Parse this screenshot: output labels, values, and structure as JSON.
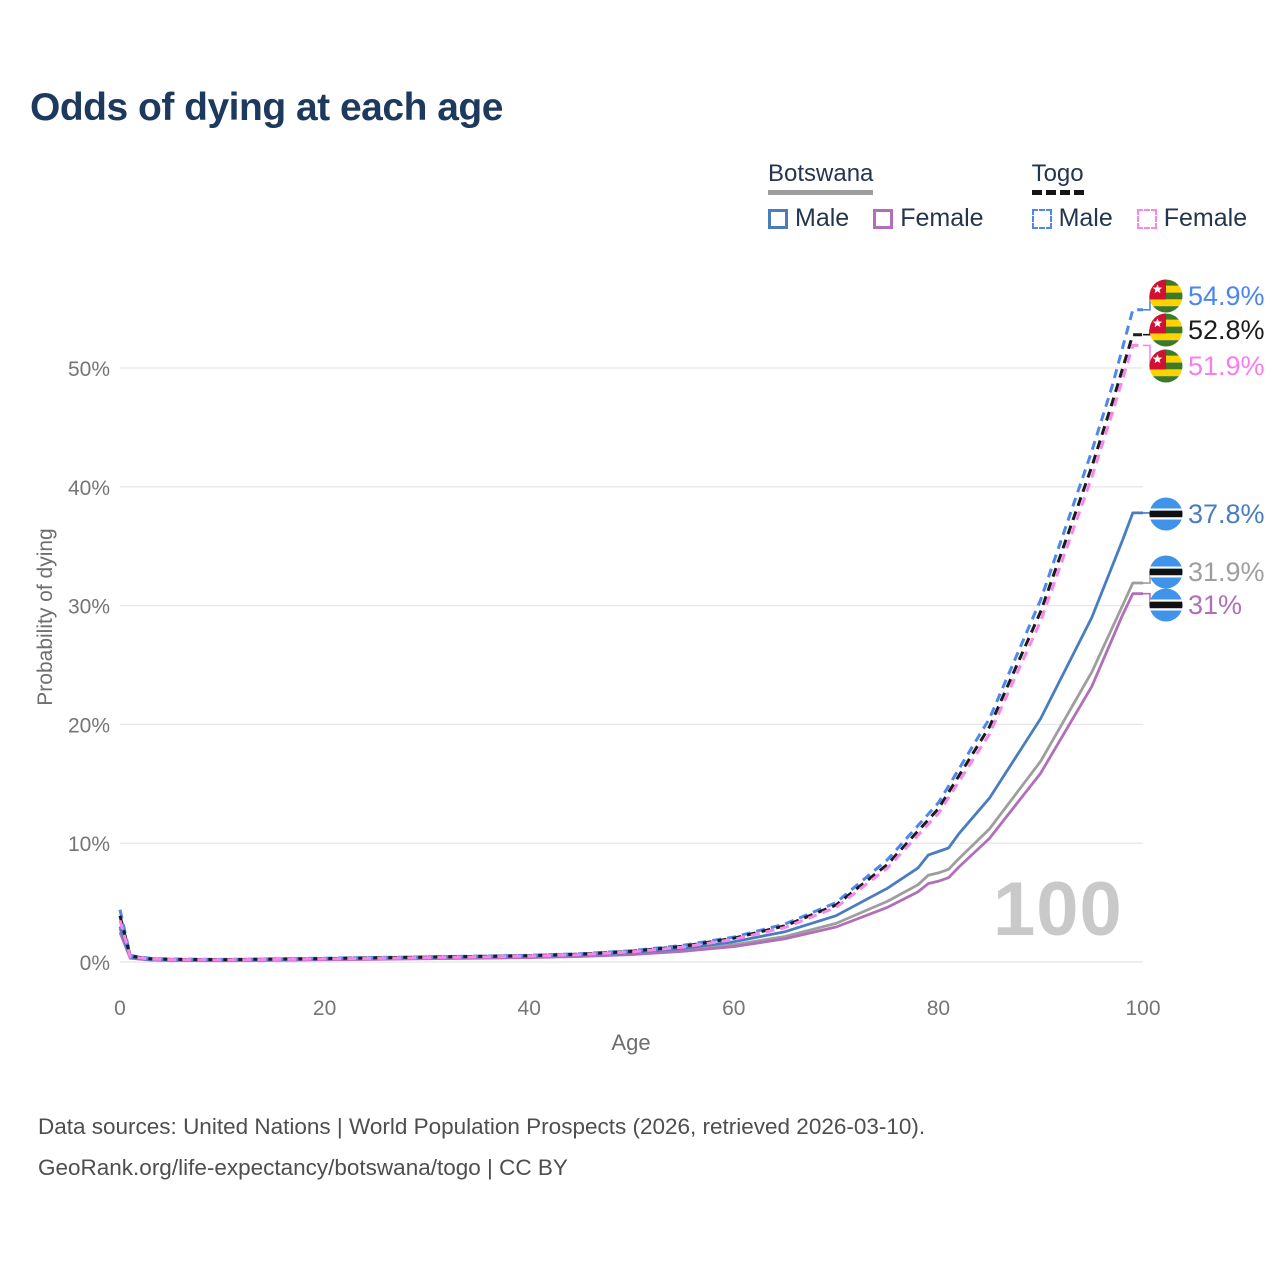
{
  "chart_data": {
    "type": "line",
    "title": "Odds of dying at each age",
    "xlabel": "Age",
    "ylabel": "Probability of dying",
    "watermark": "100",
    "xlim": [
      0,
      100
    ],
    "ylim": [
      0,
      57
    ],
    "grid": "horizontal",
    "x_ticks": [
      {
        "v": 0,
        "label": "0"
      },
      {
        "v": 20,
        "label": "20"
      },
      {
        "v": 40,
        "label": "40"
      },
      {
        "v": 60,
        "label": "60"
      },
      {
        "v": 80,
        "label": "80"
      },
      {
        "v": 100,
        "label": "100"
      }
    ],
    "y_ticks": [
      {
        "v": 0,
        "label": "0%"
      },
      {
        "v": 10,
        "label": "10%"
      },
      {
        "v": 20,
        "label": "20%"
      },
      {
        "v": 30,
        "label": "30%"
      },
      {
        "v": 40,
        "label": "40%"
      },
      {
        "v": 50,
        "label": "50%"
      }
    ],
    "legend": {
      "position": "top-right",
      "groups": [
        {
          "country": "Botswana",
          "line_style": "solid",
          "underline_color": "#9e9e9e",
          "items": [
            {
              "label": "Male",
              "color": "#4a7dc0"
            },
            {
              "label": "Female",
              "color": "#b06fb8"
            }
          ]
        },
        {
          "country": "Togo",
          "line_style": "dashed",
          "underline_color": "#151515",
          "items": [
            {
              "label": "Male",
              "color": "#4e87ee"
            },
            {
              "label": "Female",
              "color": "#fa85ee"
            }
          ]
        }
      ]
    },
    "series": [
      {
        "id": "togo-male",
        "name": "Togo Male",
        "country": "Togo",
        "sex": "male",
        "color": "#4e87ee",
        "dash": true,
        "end_label": "54.9%",
        "end_value": 54.9,
        "points": [
          [
            0,
            4.4
          ],
          [
            1,
            0.55
          ],
          [
            3,
            0.3
          ],
          [
            5,
            0.25
          ],
          [
            10,
            0.22
          ],
          [
            15,
            0.26
          ],
          [
            20,
            0.32
          ],
          [
            25,
            0.38
          ],
          [
            30,
            0.44
          ],
          [
            35,
            0.5
          ],
          [
            40,
            0.56
          ],
          [
            45,
            0.7
          ],
          [
            50,
            0.95
          ],
          [
            55,
            1.4
          ],
          [
            60,
            2.1
          ],
          [
            65,
            3.2
          ],
          [
            70,
            5.0
          ],
          [
            75,
            8.6
          ],
          [
            80,
            13.4
          ],
          [
            85,
            20.5
          ],
          [
            90,
            30.5
          ],
          [
            95,
            43.0
          ],
          [
            97,
            48.5
          ],
          [
            99,
            54.9
          ],
          [
            100,
            54.9
          ]
        ]
      },
      {
        "id": "togo-all",
        "name": "Togo",
        "country": "Togo",
        "sex": "all",
        "color": "#1c1c1c",
        "dash": true,
        "end_label": "52.8%",
        "end_value": 52.8,
        "points": [
          [
            0,
            3.9
          ],
          [
            1,
            0.5
          ],
          [
            3,
            0.27
          ],
          [
            5,
            0.22
          ],
          [
            10,
            0.2
          ],
          [
            15,
            0.24
          ],
          [
            20,
            0.29
          ],
          [
            25,
            0.35
          ],
          [
            30,
            0.41
          ],
          [
            35,
            0.47
          ],
          [
            40,
            0.53
          ],
          [
            45,
            0.66
          ],
          [
            50,
            0.9
          ],
          [
            55,
            1.32
          ],
          [
            60,
            2.0
          ],
          [
            65,
            3.05
          ],
          [
            70,
            4.8
          ],
          [
            75,
            8.2
          ],
          [
            80,
            12.9
          ],
          [
            85,
            19.8
          ],
          [
            90,
            29.5
          ],
          [
            95,
            41.7
          ],
          [
            97,
            47.1
          ],
          [
            99,
            52.8
          ],
          [
            100,
            52.8
          ]
        ]
      },
      {
        "id": "togo-female",
        "name": "Togo Female",
        "country": "Togo",
        "sex": "female",
        "color": "#fa85ee",
        "dash": true,
        "end_label": "51.9%",
        "end_value": 51.9,
        "points": [
          [
            0,
            3.5
          ],
          [
            1,
            0.45
          ],
          [
            3,
            0.24
          ],
          [
            5,
            0.2
          ],
          [
            10,
            0.18
          ],
          [
            15,
            0.21
          ],
          [
            20,
            0.26
          ],
          [
            25,
            0.31
          ],
          [
            30,
            0.37
          ],
          [
            35,
            0.43
          ],
          [
            40,
            0.5
          ],
          [
            45,
            0.62
          ],
          [
            50,
            0.85
          ],
          [
            55,
            1.25
          ],
          [
            60,
            1.9
          ],
          [
            65,
            2.9
          ],
          [
            70,
            4.6
          ],
          [
            75,
            7.9
          ],
          [
            80,
            12.5
          ],
          [
            85,
            19.2
          ],
          [
            90,
            28.7
          ],
          [
            95,
            40.8
          ],
          [
            97,
            46.2
          ],
          [
            99,
            51.9
          ],
          [
            100,
            51.9
          ]
        ]
      },
      {
        "id": "botswana-male",
        "name": "Botswana Male",
        "country": "Botswana",
        "sex": "male",
        "color": "#4a7dc0",
        "dash": false,
        "end_label": "37.8%",
        "end_value": 37.8,
        "points": [
          [
            0,
            3.0
          ],
          [
            1,
            0.4
          ],
          [
            3,
            0.2
          ],
          [
            5,
            0.17
          ],
          [
            10,
            0.15
          ],
          [
            15,
            0.2
          ],
          [
            20,
            0.27
          ],
          [
            25,
            0.33
          ],
          [
            30,
            0.39
          ],
          [
            35,
            0.45
          ],
          [
            40,
            0.5
          ],
          [
            45,
            0.6
          ],
          [
            50,
            0.8
          ],
          [
            55,
            1.15
          ],
          [
            60,
            1.7
          ],
          [
            65,
            2.55
          ],
          [
            70,
            3.9
          ],
          [
            75,
            6.2
          ],
          [
            78,
            7.9
          ],
          [
            79,
            9.0
          ],
          [
            80,
            9.3
          ],
          [
            81,
            9.6
          ],
          [
            82,
            10.8
          ],
          [
            85,
            13.8
          ],
          [
            90,
            20.5
          ],
          [
            95,
            29.0
          ],
          [
            98,
            35.5
          ],
          [
            99,
            37.8
          ],
          [
            100,
            37.8
          ]
        ]
      },
      {
        "id": "botswana-all",
        "name": "Botswana",
        "country": "Botswana",
        "sex": "all",
        "color": "#9e9e9e",
        "dash": false,
        "end_label": "31.9%",
        "end_value": 31.9,
        "points": [
          [
            0,
            2.8
          ],
          [
            1,
            0.36
          ],
          [
            3,
            0.18
          ],
          [
            5,
            0.15
          ],
          [
            10,
            0.12
          ],
          [
            15,
            0.16
          ],
          [
            20,
            0.22
          ],
          [
            25,
            0.27
          ],
          [
            30,
            0.32
          ],
          [
            35,
            0.37
          ],
          [
            40,
            0.42
          ],
          [
            45,
            0.52
          ],
          [
            50,
            0.7
          ],
          [
            55,
            1.0
          ],
          [
            60,
            1.45
          ],
          [
            65,
            2.15
          ],
          [
            70,
            3.25
          ],
          [
            75,
            5.1
          ],
          [
            78,
            6.5
          ],
          [
            79,
            7.3
          ],
          [
            80,
            7.5
          ],
          [
            81,
            7.8
          ],
          [
            82,
            8.7
          ],
          [
            85,
            11.2
          ],
          [
            90,
            16.9
          ],
          [
            95,
            24.4
          ],
          [
            98,
            30.0
          ],
          [
            99,
            31.9
          ],
          [
            100,
            31.9
          ]
        ]
      },
      {
        "id": "botswana-female",
        "name": "Botswana Female",
        "country": "Botswana",
        "sex": "female",
        "color": "#b06fb8",
        "dash": false,
        "end_label": "31%",
        "end_value": 31.0,
        "points": [
          [
            0,
            2.5
          ],
          [
            1,
            0.32
          ],
          [
            3,
            0.16
          ],
          [
            5,
            0.13
          ],
          [
            10,
            0.11
          ],
          [
            15,
            0.14
          ],
          [
            20,
            0.19
          ],
          [
            25,
            0.23
          ],
          [
            30,
            0.28
          ],
          [
            35,
            0.32
          ],
          [
            40,
            0.37
          ],
          [
            45,
            0.46
          ],
          [
            50,
            0.62
          ],
          [
            55,
            0.9
          ],
          [
            60,
            1.3
          ],
          [
            65,
            1.95
          ],
          [
            70,
            2.95
          ],
          [
            75,
            4.6
          ],
          [
            78,
            5.9
          ],
          [
            79,
            6.6
          ],
          [
            80,
            6.8
          ],
          [
            81,
            7.1
          ],
          [
            82,
            8.0
          ],
          [
            85,
            10.4
          ],
          [
            90,
            15.9
          ],
          [
            95,
            23.2
          ],
          [
            98,
            29.2
          ],
          [
            99,
            31.0
          ],
          [
            100,
            31.0
          ]
        ]
      }
    ]
  },
  "footer": {
    "line1": "Data sources: United Nations | World Population Prospects (2026, retrieved 2026-03-10).",
    "line2": "GeoRank.org/life-expectancy/botswana/togo | CC BY"
  }
}
